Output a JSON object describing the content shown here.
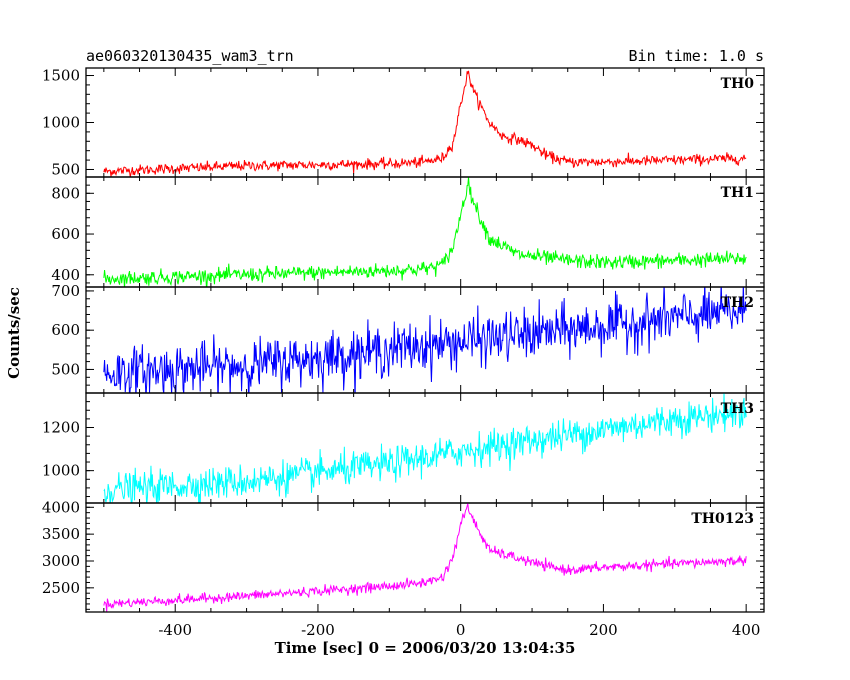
{
  "header": {
    "left_title": "ae060320130435_wam3_trn",
    "right_title": "Bin time: 1.0 s"
  },
  "axes": {
    "xlabel": "Time [sec] 0 = 2006/03/20 13:04:35",
    "ylabel": "Counts/sec"
  },
  "chart_data": {
    "type": "line",
    "title": "ae060320130435_wam3_trn",
    "subtitle": "Bin time: 1.0 s",
    "xlabel": "Time [sec] 0 = 2006/03/20 13:04:35",
    "ylabel": "Counts/sec",
    "xlim": [
      -525,
      425
    ],
    "x_ticks": [
      -400,
      -200,
      0,
      200,
      400
    ],
    "bin_time_s": 1.0,
    "panels": [
      {
        "name": "TH0",
        "color": "#ff0000",
        "ylim": [
          420,
          1580
        ],
        "y_ticks": [
          500,
          1000,
          1500
        ],
        "points": [
          [
            -500,
            480
          ],
          [
            -400,
            510
          ],
          [
            -300,
            540
          ],
          [
            -200,
            550
          ],
          [
            -100,
            560
          ],
          [
            -50,
            580
          ],
          [
            -25,
            620
          ],
          [
            -10,
            800
          ],
          [
            0,
            1200
          ],
          [
            10,
            1530
          ],
          [
            20,
            1300
          ],
          [
            40,
            1000
          ],
          [
            60,
            850
          ],
          [
            80,
            820
          ],
          [
            100,
            760
          ],
          [
            120,
            650
          ],
          [
            150,
            580
          ],
          [
            200,
            580
          ],
          [
            300,
            600
          ],
          [
            400,
            620
          ]
        ],
        "noise": 28
      },
      {
        "name": "TH1",
        "color": "#00ff00",
        "ylim": [
          340,
          880
        ],
        "y_ticks": [
          400,
          600,
          800
        ],
        "points": [
          [
            -500,
            380
          ],
          [
            -400,
            390
          ],
          [
            -300,
            400
          ],
          [
            -200,
            410
          ],
          [
            -100,
            420
          ],
          [
            -50,
            430
          ],
          [
            -25,
            450
          ],
          [
            -10,
            540
          ],
          [
            0,
            700
          ],
          [
            10,
            850
          ],
          [
            20,
            740
          ],
          [
            40,
            580
          ],
          [
            80,
            500
          ],
          [
            150,
            470
          ],
          [
            200,
            460
          ],
          [
            300,
            470
          ],
          [
            400,
            480
          ]
        ],
        "noise": 18
      },
      {
        "name": "TH2",
        "color": "#0000ff",
        "ylim": [
          440,
          710
        ],
        "y_ticks": [
          500,
          600,
          700
        ],
        "points": [
          [
            -500,
            490
          ],
          [
            -300,
            510
          ],
          [
            -200,
            530
          ],
          [
            -100,
            550
          ],
          [
            0,
            570
          ],
          [
            100,
            590
          ],
          [
            200,
            610
          ],
          [
            300,
            630
          ],
          [
            400,
            650
          ]
        ],
        "noise": 32
      },
      {
        "name": "TH3",
        "color": "#00ffff",
        "ylim": [
          850,
          1360
        ],
        "y_ticks": [
          1000,
          1200
        ],
        "points": [
          [
            -500,
            910
          ],
          [
            -300,
            950
          ],
          [
            -200,
            990
          ],
          [
            -100,
            1030
          ],
          [
            0,
            1090
          ],
          [
            100,
            1140
          ],
          [
            200,
            1190
          ],
          [
            300,
            1240
          ],
          [
            400,
            1270
          ]
        ],
        "noise": 38
      },
      {
        "name": "TH0123",
        "color": "#ff00ff",
        "ylim": [
          2050,
          4080
        ],
        "y_ticks": [
          2500,
          3000,
          3500,
          4000
        ],
        "points": [
          [
            -500,
            2200
          ],
          [
            -400,
            2270
          ],
          [
            -300,
            2350
          ],
          [
            -200,
            2440
          ],
          [
            -100,
            2530
          ],
          [
            -50,
            2600
          ],
          [
            -25,
            2700
          ],
          [
            -10,
            3100
          ],
          [
            0,
            3700
          ],
          [
            10,
            4000
          ],
          [
            20,
            3700
          ],
          [
            40,
            3200
          ],
          [
            80,
            3050
          ],
          [
            120,
            2900
          ],
          [
            150,
            2830
          ],
          [
            200,
            2880
          ],
          [
            300,
            2950
          ],
          [
            400,
            3010
          ]
        ],
        "noise": 45
      }
    ]
  }
}
